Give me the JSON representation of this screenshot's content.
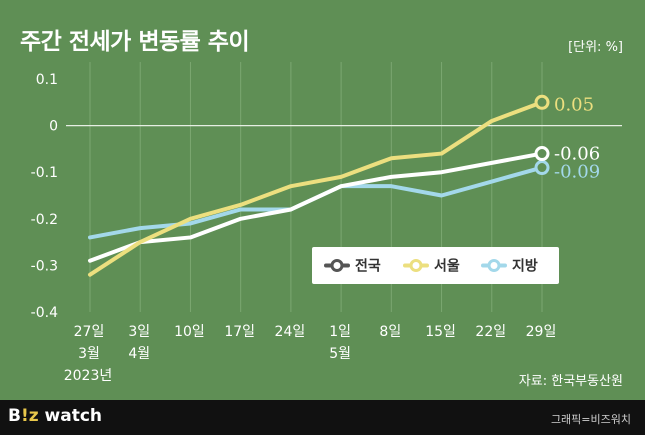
{
  "title": "주간 전세가 변동률 추이",
  "unit": "[단위: %]",
  "source": "자료: 한국부동산원",
  "footer": {
    "logo_prefix": "B",
    "logo_z": "!z",
    "logo_suffix": " watch",
    "credit": "그래픽=비즈워치"
  },
  "colors": {
    "background": "#5f8f55",
    "national": "#ffffff",
    "seoul": "#ecdf7f",
    "regional": "#a3d8ea"
  },
  "chart_data": {
    "type": "line",
    "categories": [
      "27일",
      "3일",
      "10일",
      "17일",
      "24일",
      "1일",
      "8일",
      "15일",
      "22일",
      "29일"
    ],
    "month_labels": [
      "3월",
      "4월",
      "",
      "",
      "",
      "5월",
      "",
      "",
      "",
      ""
    ],
    "year_label": "2023년",
    "ylim": [
      -0.4,
      0.1
    ],
    "yticks": [
      0.1,
      0,
      -0.1,
      -0.2,
      -0.3,
      -0.4
    ],
    "ytick_labels": [
      "0.1",
      "0",
      "-0.1",
      "-0.2",
      "-0.3",
      "-0.4"
    ],
    "grid": "vertical",
    "legend_position": "center-right",
    "series": [
      {
        "name": "전국",
        "color": "#ffffff",
        "values": [
          -0.29,
          -0.25,
          -0.24,
          -0.2,
          -0.18,
          -0.13,
          -0.11,
          -0.1,
          -0.08,
          -0.06
        ],
        "end_label": "-0.06"
      },
      {
        "name": "서울",
        "color": "#ecdf7f",
        "values": [
          -0.32,
          -0.25,
          -0.2,
          -0.17,
          -0.13,
          -0.11,
          -0.07,
          -0.06,
          0.01,
          0.05
        ],
        "end_label": "0.05"
      },
      {
        "name": "지방",
        "color": "#a3d8ea",
        "values": [
          -0.24,
          -0.22,
          -0.21,
          -0.18,
          -0.18,
          -0.13,
          -0.13,
          -0.15,
          -0.12,
          -0.09
        ],
        "end_label": "-0.09"
      }
    ]
  }
}
